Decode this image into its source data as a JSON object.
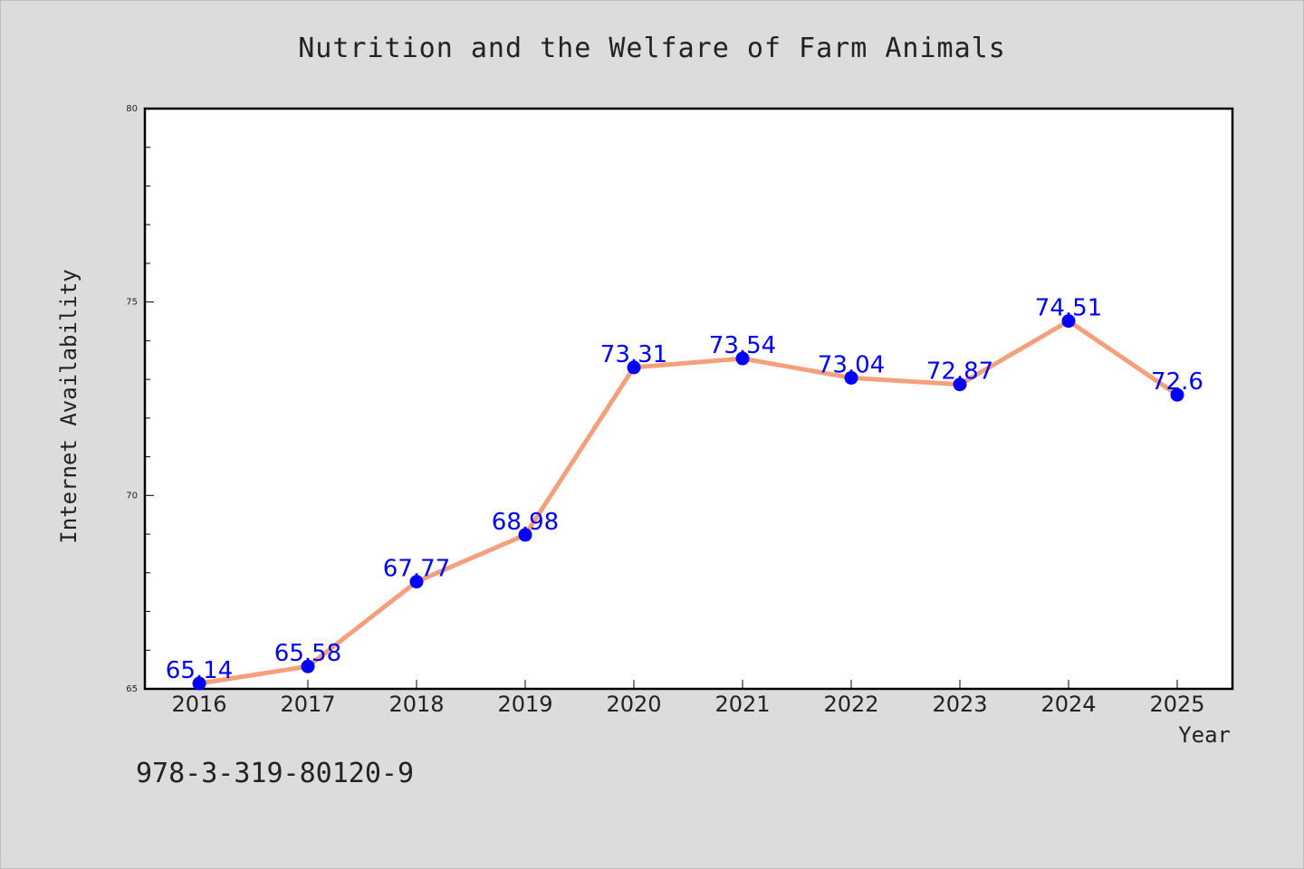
{
  "chart_data": {
    "type": "line",
    "title": "Nutrition and the Welfare of Farm Animals",
    "xlabel": "Year",
    "ylabel": "Internet Availability",
    "categories": [
      "2016",
      "2017",
      "2018",
      "2019",
      "2020",
      "2021",
      "2022",
      "2023",
      "2024",
      "2025"
    ],
    "series": [
      {
        "values": [
          65.14,
          65.58,
          67.77,
          68.98,
          73.31,
          73.54,
          73.04,
          72.87,
          74.51,
          72.6
        ]
      }
    ],
    "data_labels": [
      "65.14",
      "65.58",
      "67.77",
      "68.98",
      "73.31",
      "73.54",
      "73.04",
      "72.87",
      "74.51",
      "72.6"
    ],
    "ylim": [
      65,
      80
    ],
    "yticks": [
      65,
      70,
      75,
      80
    ],
    "ytick_labels": [
      "65",
      "70",
      "75",
      "80"
    ],
    "grid": false,
    "line_color": "#f4a07c",
    "marker_color": "#0000ff",
    "label_color": "#0000ff",
    "background_color": "#dcdcdc",
    "plot_background": "#ffffff"
  },
  "footnote": "978-3-319-80120-9"
}
